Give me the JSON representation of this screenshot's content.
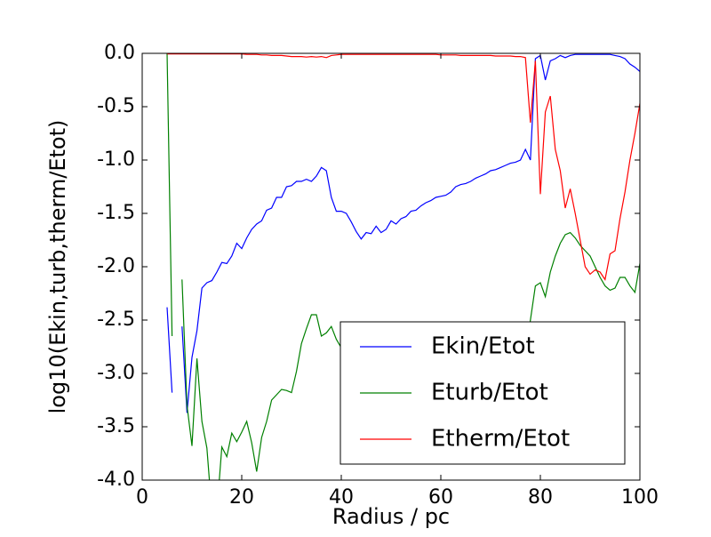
{
  "chart_data": {
    "type": "line",
    "xlabel": "Radius / pc",
    "ylabel": "log10(Ekin,turb,therm/Etot)",
    "xlim": [
      0,
      100
    ],
    "ylim": [
      -4,
      0
    ],
    "xticks": [
      0,
      20,
      40,
      60,
      80,
      100
    ],
    "yticks": [
      {
        "value": -4,
        "label": "-4.0"
      },
      -3.5,
      {
        "value": -3,
        "label": "-3.0"
      },
      -2.5,
      {
        "value": -2,
        "label": "-2.0"
      },
      -1.5,
      {
        "value": -1,
        "label": "-1.0"
      },
      -0.5,
      {
        "value": 0,
        "label": "0.0"
      }
    ],
    "legend": "lower right",
    "x": [
      5,
      6,
      7,
      8,
      9,
      10,
      11,
      12,
      13,
      14,
      15,
      16,
      17,
      18,
      19,
      20,
      21,
      22,
      23,
      24,
      25,
      26,
      27,
      28,
      29,
      30,
      31,
      32,
      33,
      34,
      35,
      36,
      37,
      38,
      39,
      40,
      41,
      42,
      43,
      44,
      45,
      46,
      47,
      48,
      49,
      50,
      51,
      52,
      53,
      54,
      55,
      56,
      57,
      58,
      59,
      60,
      61,
      62,
      63,
      64,
      65,
      66,
      67,
      68,
      69,
      70,
      71,
      72,
      73,
      74,
      75,
      76,
      77,
      78,
      79,
      80,
      81,
      82,
      83,
      84,
      85,
      86,
      87,
      88,
      89,
      90,
      91,
      92,
      93,
      94,
      95,
      96,
      97,
      98,
      99,
      100
    ],
    "series": [
      {
        "name": "Ekin/Etot",
        "color": "#0000ff",
        "values": [
          -2.38,
          -3.18,
          null,
          -2.56,
          -3.37,
          -2.85,
          -2.6,
          -2.2,
          -2.15,
          -2.13,
          -2.05,
          -1.96,
          -1.97,
          -1.9,
          -1.78,
          -1.83,
          -1.73,
          -1.65,
          -1.6,
          -1.57,
          -1.47,
          -1.45,
          -1.35,
          -1.35,
          -1.25,
          -1.24,
          -1.2,
          -1.2,
          -1.18,
          -1.2,
          -1.15,
          -1.07,
          -1.1,
          -1.35,
          -1.48,
          -1.48,
          -1.5,
          -1.58,
          -1.67,
          -1.74,
          -1.68,
          -1.69,
          -1.62,
          -1.68,
          -1.65,
          -1.57,
          -1.6,
          -1.55,
          -1.53,
          -1.48,
          -1.47,
          -1.43,
          -1.4,
          -1.38,
          -1.35,
          -1.34,
          -1.33,
          -1.3,
          -1.25,
          -1.23,
          -1.22,
          -1.2,
          -1.17,
          -1.15,
          -1.13,
          -1.1,
          -1.09,
          -1.07,
          -1.05,
          -1.03,
          -1.02,
          -1.0,
          -0.9,
          -1.0,
          -0.05,
          -0.02,
          -0.25,
          -0.07,
          -0.05,
          -0.02,
          -0.04,
          -0.02,
          -0.01,
          -0.01,
          -0.01,
          -0.01,
          -0.01,
          -0.01,
          -0.01,
          -0.01,
          -0.02,
          -0.03,
          -0.05,
          -0.1,
          -0.13,
          -0.17
        ]
      },
      {
        "name": "Eturb/Etot",
        "color": "#008000",
        "values": [
          0.0,
          -2.65,
          null,
          -2.12,
          -3.3,
          -3.68,
          -2.86,
          -3.45,
          -3.7,
          -4.3,
          -4.3,
          -3.69,
          -3.78,
          -3.56,
          -3.64,
          -3.55,
          -3.45,
          -3.65,
          -3.92,
          -3.6,
          -3.45,
          -3.25,
          -3.2,
          -3.15,
          -3.16,
          -3.18,
          -2.98,
          -2.72,
          -2.58,
          -2.45,
          -2.45,
          -2.65,
          -2.62,
          -2.56,
          -2.68,
          -2.76,
          -2.72,
          -2.65,
          -2.7,
          null,
          null,
          null,
          null,
          null,
          null,
          null,
          null,
          null,
          null,
          null,
          null,
          null,
          null,
          null,
          null,
          null,
          null,
          null,
          null,
          null,
          null,
          null,
          null,
          null,
          null,
          null,
          null,
          null,
          null,
          null,
          null,
          null,
          -2.8,
          -2.5,
          -2.18,
          -2.15,
          -2.28,
          -2.05,
          -1.9,
          -1.78,
          -1.7,
          -1.68,
          -1.73,
          -1.8,
          -1.85,
          -1.9,
          -2.0,
          -2.1,
          -2.18,
          -2.22,
          -2.2,
          -2.1,
          -2.1,
          -2.18,
          -2.24,
          -1.97
        ]
      },
      {
        "name": "Etherm/Etot",
        "color": "#ff0000",
        "values": [
          -0.005,
          -0.005,
          -0.005,
          -0.005,
          -0.005,
          -0.005,
          -0.005,
          -0.005,
          -0.005,
          -0.005,
          -0.005,
          -0.005,
          -0.005,
          -0.005,
          -0.005,
          -0.005,
          -0.01,
          -0.01,
          -0.01,
          -0.015,
          -0.015,
          -0.02,
          -0.02,
          -0.02,
          -0.025,
          -0.03,
          -0.03,
          -0.03,
          -0.035,
          -0.03,
          -0.035,
          -0.03,
          -0.04,
          -0.02,
          -0.015,
          -0.01,
          -0.01,
          -0.01,
          -0.01,
          -0.01,
          -0.01,
          -0.01,
          -0.01,
          -0.01,
          -0.01,
          -0.01,
          -0.01,
          -0.01,
          -0.01,
          -0.01,
          -0.01,
          -0.01,
          -0.01,
          -0.01,
          -0.01,
          -0.015,
          -0.015,
          -0.015,
          -0.015,
          -0.02,
          -0.02,
          -0.02,
          -0.02,
          -0.02,
          -0.02,
          -0.02,
          -0.025,
          -0.025,
          -0.025,
          -0.025,
          -0.03,
          -0.03,
          -0.04,
          -0.65,
          -0.07,
          -1.32,
          -0.55,
          -0.4,
          -0.9,
          -1.1,
          -1.45,
          -1.27,
          -1.5,
          -1.75,
          -2.0,
          -2.07,
          -2.03,
          -2.05,
          -2.12,
          -1.88,
          -1.85,
          -1.55,
          -1.3,
          -1.0,
          -0.75,
          -0.47
        ]
      }
    ]
  }
}
